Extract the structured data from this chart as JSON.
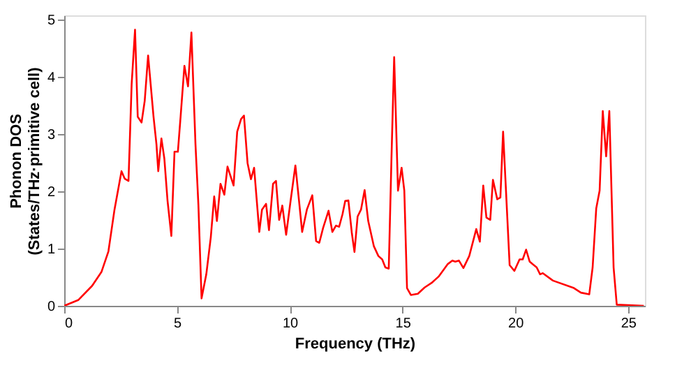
{
  "chart_data": {
    "type": "line",
    "xlabel": "Frequency (THz)",
    "ylabel": "Phonon DOS\n(States/THz·primitive cell)",
    "xlim": [
      0,
      25.75
    ],
    "ylim": [
      0,
      5.07
    ],
    "xticks": [
      0,
      5,
      10,
      15,
      20,
      25
    ],
    "yticks": [
      0,
      1,
      2,
      3,
      4,
      5
    ],
    "grid": false,
    "marker": "none",
    "line_style": "solid",
    "series": [
      {
        "color": "#ff0000",
        "x": [
          0,
          0.62,
          1.24,
          1.65,
          1.96,
          2.23,
          2.54,
          2.68,
          2.85,
          2.99,
          3.14,
          3.26,
          3.43,
          3.57,
          3.72,
          3.96,
          4.09,
          4.17,
          4.31,
          4.44,
          4.58,
          4.75,
          4.89,
          5.04,
          5.16,
          5.33,
          5.49,
          5.64,
          5.82,
          5.95,
          6.09,
          6.3,
          6.5,
          6.65,
          6.77,
          6.93,
          7.1,
          7.24,
          7.51,
          7.67,
          7.84,
          7.97,
          8.13,
          8.28,
          8.42,
          8.65,
          8.77,
          8.95,
          9.08,
          9.26,
          9.39,
          9.53,
          9.67,
          9.84,
          10.04,
          10.25,
          10.41,
          10.55,
          10.76,
          11.0,
          11.17,
          11.31,
          11.48,
          11.72,
          11.89,
          12.05,
          12.19,
          12.34,
          12.46,
          12.6,
          12.75,
          12.87,
          13.01,
          13.16,
          13.32,
          13.48,
          13.73,
          13.93,
          14.1,
          14.24,
          14.39,
          14.51,
          14.63,
          14.8,
          14.96,
          15.08,
          15.2,
          15.37,
          15.68,
          15.98,
          16.29,
          16.6,
          17.01,
          17.21,
          17.34,
          17.5,
          17.7,
          17.96,
          18.27,
          18.43,
          18.58,
          18.72,
          18.89,
          19.01,
          19.2,
          19.34,
          19.46,
          19.75,
          19.96,
          20.19,
          20.33,
          20.48,
          20.64,
          20.95,
          21.1,
          21.22,
          21.67,
          22.6,
          22.91,
          23.28,
          23.43,
          23.59,
          23.74,
          23.88,
          24.03,
          24.17,
          24.36,
          24.5,
          25.7
        ],
        "values": [
          0,
          0.1,
          0.35,
          0.59,
          0.95,
          1.68,
          2.35,
          2.22,
          2.18,
          3.87,
          4.82,
          3.3,
          3.2,
          3.58,
          4.37,
          3.3,
          2.82,
          2.35,
          2.92,
          2.57,
          1.84,
          1.22,
          2.69,
          2.69,
          3.3,
          4.19,
          3.83,
          4.77,
          2.82,
          1.76,
          0.13,
          0.55,
          1.2,
          1.91,
          1.48,
          2.13,
          1.94,
          2.43,
          2.1,
          3.04,
          3.26,
          3.32,
          2.49,
          2.21,
          2.41,
          1.29,
          1.68,
          1.78,
          1.32,
          2.13,
          2.18,
          1.5,
          1.75,
          1.24,
          1.84,
          2.45,
          1.84,
          1.29,
          1.68,
          1.93,
          1.13,
          1.1,
          1.36,
          1.66,
          1.29,
          1.4,
          1.38,
          1.6,
          1.83,
          1.84,
          1.28,
          0.94,
          1.56,
          1.68,
          2.02,
          1.48,
          1.04,
          0.87,
          0.81,
          0.67,
          0.65,
          2.57,
          4.34,
          2.01,
          2.41,
          2.01,
          0.31,
          0.19,
          0.21,
          0.32,
          0.4,
          0.51,
          0.73,
          0.79,
          0.77,
          0.79,
          0.66,
          0.87,
          1.34,
          1.12,
          2.1,
          1.54,
          1.5,
          2.2,
          1.86,
          1.89,
          3.04,
          0.71,
          0.61,
          0.81,
          0.81,
          0.98,
          0.77,
          0.67,
          0.55,
          0.57,
          0.44,
          0.31,
          0.23,
          0.2,
          0.67,
          1.7,
          2.01,
          3.4,
          2.61,
          3.4,
          0.67,
          0.02,
          0
        ]
      }
    ]
  }
}
